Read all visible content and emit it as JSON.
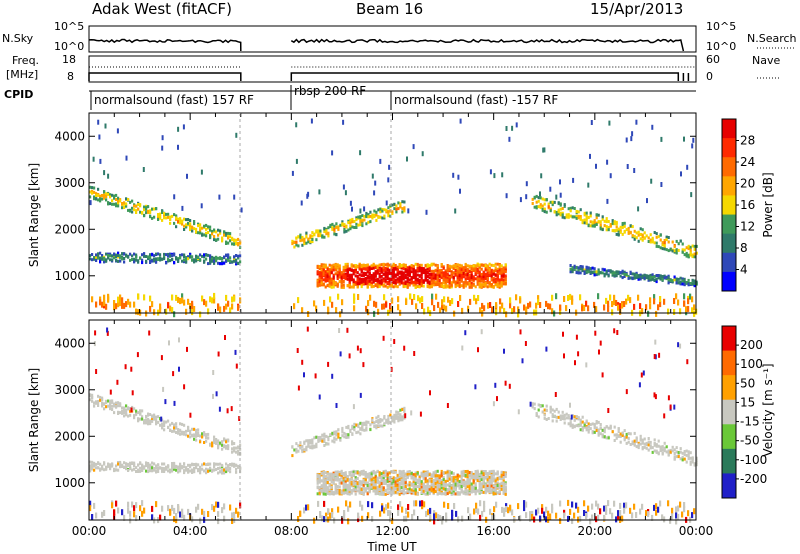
{
  "header": {
    "title_left": "Adak West (fitACF)",
    "title_center": "Beam 16",
    "title_right": "15/Apr/2013"
  },
  "sky_panel": {
    "left_label": "N.Sky",
    "right_label": "N.Search",
    "left_ticks": [
      "10^5",
      "10^0"
    ],
    "right_ticks": [
      "10^5",
      "10^0"
    ]
  },
  "freq_panel": {
    "left_label_1": "Freq.",
    "left_label_2": "[MHz]",
    "right_label": "Nave",
    "left_ticks": [
      "18",
      "8"
    ],
    "right_ticks": [
      "60",
      "0"
    ]
  },
  "cpid": {
    "label": "CPID",
    "segments": [
      {
        "name": "normalsound (fast) 157 RF",
        "start": 0.0,
        "end": 8.0
      },
      {
        "name": "rbsp 200 RF",
        "start": 8.0,
        "end": 12.0
      },
      {
        "name": "normalsound (fast) -157 RF",
        "start": 12.0,
        "end": 24.0
      }
    ]
  },
  "colors": {
    "power_scale": [
      "#0000ff",
      "#2f48b8",
      "#2f7a6a",
      "#3f9a5a",
      "#f5d800",
      "#ffa600",
      "#ff6a00",
      "#ff2a00",
      "#e60000"
    ],
    "velocity_scale": [
      "#2020c8",
      "#2a7a5a",
      "#6ac838",
      "#c8c8c0",
      "#ffa000",
      "#ff6a00",
      "#e80000"
    ],
    "ground_gray": "#c8c8c0"
  },
  "chart_data": [
    {
      "type": "heatmap",
      "panel": "power",
      "xlabel": "",
      "ylabel": "Slant Range [km]",
      "xlim": [
        0,
        24
      ],
      "ylim": [
        200,
        4500
      ],
      "x_ticks": [
        "00:00",
        "04:00",
        "08:00",
        "12:00",
        "16:00",
        "20:00",
        "00:00"
      ],
      "y_ticks": [
        1000,
        2000,
        3000,
        4000
      ],
      "colorbar": {
        "label": "Power [dB]",
        "ticks": [
          "28",
          "24",
          "20",
          "16",
          "12",
          "8",
          "4"
        ],
        "range": [
          0,
          30
        ]
      },
      "data_gaps_hours": [
        [
          6.0,
          8.0
        ]
      ],
      "features": [
        {
          "name": "band",
          "t_start": 0.0,
          "t_end": 6.0,
          "range_start_km": 1400,
          "range_end_km": 1350,
          "width_km": 200,
          "value_db": 8
        },
        {
          "name": "band",
          "t_start": 0.0,
          "t_end": 6.0,
          "range_start_km": 2800,
          "range_end_km": 1700,
          "width_km": 250,
          "value_db": 14
        },
        {
          "name": "band",
          "t_start": 8.0,
          "t_end": 12.5,
          "range_start_km": 1700,
          "range_end_km": 2500,
          "width_km": 250,
          "value_db": 14
        },
        {
          "name": "blob",
          "t_start": 9.0,
          "t_end": 16.5,
          "range_start_km": 1000,
          "range_end_km": 1000,
          "width_km": 500,
          "value_db": 22
        },
        {
          "name": "band",
          "t_start": 17.5,
          "t_end": 24.0,
          "range_start_km": 2600,
          "range_end_km": 1500,
          "width_km": 300,
          "value_db": 14
        },
        {
          "name": "band",
          "t_start": 19.0,
          "t_end": 24.0,
          "range_start_km": 1150,
          "range_end_km": 850,
          "width_km": 150,
          "value_db": 8
        },
        {
          "name": "near_range",
          "t_start": 0.0,
          "t_end": 24.0,
          "range_start_km": 400,
          "range_end_km": 400,
          "width_km": 400,
          "value_db": 18
        }
      ]
    },
    {
      "type": "heatmap",
      "panel": "velocity",
      "xlabel": "Time UT",
      "ylabel": "Slant Range [km]",
      "xlim": [
        0,
        24
      ],
      "ylim": [
        200,
        4500
      ],
      "x_ticks": [
        "00:00",
        "04:00",
        "08:00",
        "12:00",
        "16:00",
        "20:00",
        "00:00"
      ],
      "y_ticks": [
        1000,
        2000,
        3000,
        4000
      ],
      "colorbar": {
        "label": "Velocity [m s⁻¹]",
        "ticks": [
          "200",
          "100",
          "50",
          "15",
          "-15",
          "-50",
          "-100",
          "-200"
        ],
        "range": [
          -250,
          250
        ]
      },
      "data_gaps_hours": [
        [
          6.0,
          8.0
        ]
      ],
      "features": [
        {
          "name": "ground_scatter",
          "t_start": 0.0,
          "t_end": 6.0,
          "range_start_km": 2800,
          "range_end_km": 1700,
          "width_km": 250,
          "value_ms": 0
        },
        {
          "name": "ground_scatter",
          "t_start": 0.0,
          "t_end": 6.0,
          "range_start_km": 1350,
          "range_end_km": 1300,
          "width_km": 200,
          "value_ms": 0
        },
        {
          "name": "ground_scatter",
          "t_start": 8.0,
          "t_end": 12.5,
          "range_start_km": 1700,
          "range_end_km": 2500,
          "width_km": 250,
          "value_ms": 0
        },
        {
          "name": "blob",
          "t_start": 9.0,
          "t_end": 16.5,
          "range_start_km": 1000,
          "range_end_km": 1000,
          "width_km": 500,
          "value_ms": -30
        },
        {
          "name": "ground_scatter",
          "t_start": 17.5,
          "t_end": 24.0,
          "range_start_km": 2600,
          "range_end_km": 1500,
          "width_km": 300,
          "value_ms": 0
        },
        {
          "name": "near_range",
          "t_start": 0.0,
          "t_end": 24.0,
          "range_start_km": 400,
          "range_end_km": 400,
          "width_km": 400,
          "value_ms": -60
        }
      ]
    }
  ]
}
